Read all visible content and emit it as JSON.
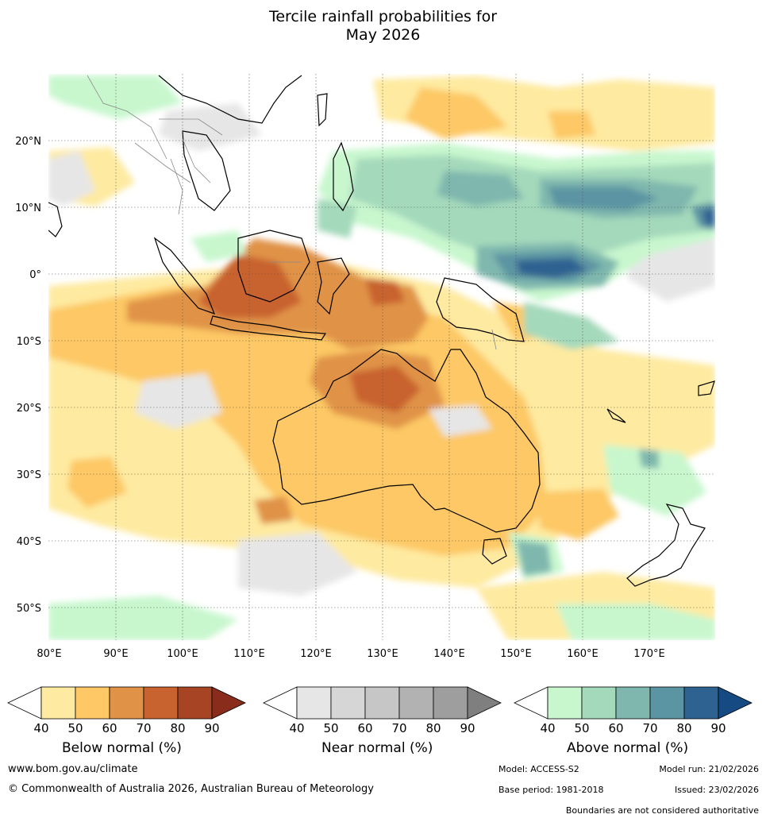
{
  "header": {
    "title_line1": "Tercile rainfall probabilities for",
    "title_line2": "May 2026"
  },
  "map": {
    "lat_labels": [
      "20°N",
      "10°N",
      "0°",
      "10°S",
      "20°S",
      "30°S",
      "40°S",
      "50°S"
    ],
    "lon_labels": [
      "80°E",
      "90°E",
      "100°E",
      "110°E",
      "120°E",
      "130°E",
      "140°E",
      "150°E",
      "160°E",
      "170°E"
    ]
  },
  "legends": {
    "ticks": [
      "40",
      "50",
      "60",
      "70",
      "80",
      "90"
    ],
    "below": {
      "title": "Below normal (%)",
      "colors": [
        "#ffffff",
        "#feeaa0",
        "#fdc865",
        "#e09346",
        "#c8622f",
        "#a74423",
        "#8a2c1c"
      ]
    },
    "near": {
      "title": "Near normal (%)",
      "colors": [
        "#ffffff",
        "#e6e6e6",
        "#d6d6d6",
        "#c6c6c6",
        "#b2b2b2",
        "#9e9e9e",
        "#7f7f7f"
      ]
    },
    "above": {
      "title": "Above normal (%)",
      "colors": [
        "#ffffff",
        "#c8f7ce",
        "#a4d9bb",
        "#7fb7ae",
        "#5b94a3",
        "#2d6291",
        "#164a82"
      ]
    }
  },
  "footer": {
    "website": "www.bom.gov.au/climate",
    "copyright": "© Commonwealth of Australia 2026, Australian Bureau of Meteorology",
    "model": "Model: ACCESS-S2",
    "model_run": "Model run: 21/02/2026",
    "base_period": "Base period: 1981-2018",
    "issued": "Issued: 23/02/2026",
    "disclaimer": "Boundaries are not considered authoritative"
  }
}
